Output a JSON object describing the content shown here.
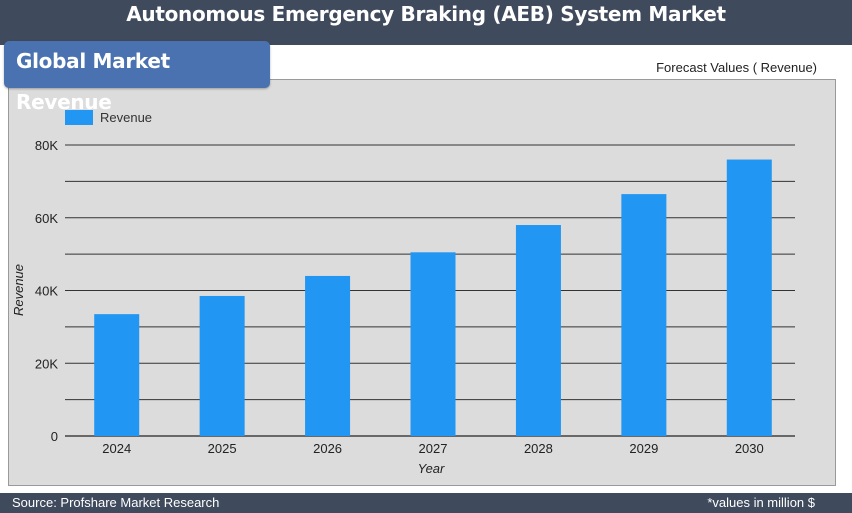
{
  "header": {
    "title": "Autonomous Emergency Braking (AEB) System Market",
    "badge": "Global Market Revenue",
    "forecast_label": "Forecast Values ( Revenue)"
  },
  "footer": {
    "source": "Source: Profshare Market Research",
    "unit_note": "*values in million $"
  },
  "colors": {
    "background": "#3f4a5c",
    "badge": "#4a72b0",
    "bar": "#2196f3",
    "plot_area": "#dcdcdc"
  },
  "chart_data": {
    "type": "bar",
    "categories": [
      "2024",
      "2025",
      "2026",
      "2027",
      "2028",
      "2029",
      "2030"
    ],
    "series": [
      {
        "name": "Revenue",
        "values": [
          33500,
          38500,
          44000,
          50500,
          58000,
          66500,
          76000
        ]
      }
    ],
    "xlabel": "Year",
    "ylabel": "Revenue",
    "ylim": [
      0,
      80000
    ],
    "yticks": [
      0,
      20000,
      40000,
      60000,
      80000
    ],
    "ytick_labels": [
      "0",
      "20K",
      "40K",
      "60K",
      "80K"
    ],
    "grid": true,
    "legend": "top-left"
  }
}
